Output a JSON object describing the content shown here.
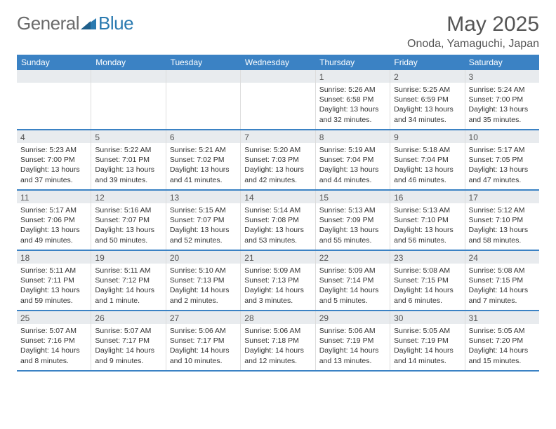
{
  "logo": {
    "part1": "General",
    "part2": "Blue"
  },
  "title": "May 2025",
  "location": "Onoda, Yamaguchi, Japan",
  "colors": {
    "header_bg": "#3b82c4",
    "header_text": "#ffffff",
    "daynum_bg": "#e8ebee",
    "text": "#333333",
    "logo_gray": "#6a6a6a",
    "logo_blue": "#2a7ab0"
  },
  "day_headers": [
    "Sunday",
    "Monday",
    "Tuesday",
    "Wednesday",
    "Thursday",
    "Friday",
    "Saturday"
  ],
  "weeks": [
    [
      {
        "n": "",
        "sr": "",
        "ss": "",
        "dl": ""
      },
      {
        "n": "",
        "sr": "",
        "ss": "",
        "dl": ""
      },
      {
        "n": "",
        "sr": "",
        "ss": "",
        "dl": ""
      },
      {
        "n": "",
        "sr": "",
        "ss": "",
        "dl": ""
      },
      {
        "n": "1",
        "sr": "Sunrise: 5:26 AM",
        "ss": "Sunset: 6:58 PM",
        "dl": "Daylight: 13 hours and 32 minutes."
      },
      {
        "n": "2",
        "sr": "Sunrise: 5:25 AM",
        "ss": "Sunset: 6:59 PM",
        "dl": "Daylight: 13 hours and 34 minutes."
      },
      {
        "n": "3",
        "sr": "Sunrise: 5:24 AM",
        "ss": "Sunset: 7:00 PM",
        "dl": "Daylight: 13 hours and 35 minutes."
      }
    ],
    [
      {
        "n": "4",
        "sr": "Sunrise: 5:23 AM",
        "ss": "Sunset: 7:00 PM",
        "dl": "Daylight: 13 hours and 37 minutes."
      },
      {
        "n": "5",
        "sr": "Sunrise: 5:22 AM",
        "ss": "Sunset: 7:01 PM",
        "dl": "Daylight: 13 hours and 39 minutes."
      },
      {
        "n": "6",
        "sr": "Sunrise: 5:21 AM",
        "ss": "Sunset: 7:02 PM",
        "dl": "Daylight: 13 hours and 41 minutes."
      },
      {
        "n": "7",
        "sr": "Sunrise: 5:20 AM",
        "ss": "Sunset: 7:03 PM",
        "dl": "Daylight: 13 hours and 42 minutes."
      },
      {
        "n": "8",
        "sr": "Sunrise: 5:19 AM",
        "ss": "Sunset: 7:04 PM",
        "dl": "Daylight: 13 hours and 44 minutes."
      },
      {
        "n": "9",
        "sr": "Sunrise: 5:18 AM",
        "ss": "Sunset: 7:04 PM",
        "dl": "Daylight: 13 hours and 46 minutes."
      },
      {
        "n": "10",
        "sr": "Sunrise: 5:17 AM",
        "ss": "Sunset: 7:05 PM",
        "dl": "Daylight: 13 hours and 47 minutes."
      }
    ],
    [
      {
        "n": "11",
        "sr": "Sunrise: 5:17 AM",
        "ss": "Sunset: 7:06 PM",
        "dl": "Daylight: 13 hours and 49 minutes."
      },
      {
        "n": "12",
        "sr": "Sunrise: 5:16 AM",
        "ss": "Sunset: 7:07 PM",
        "dl": "Daylight: 13 hours and 50 minutes."
      },
      {
        "n": "13",
        "sr": "Sunrise: 5:15 AM",
        "ss": "Sunset: 7:07 PM",
        "dl": "Daylight: 13 hours and 52 minutes."
      },
      {
        "n": "14",
        "sr": "Sunrise: 5:14 AM",
        "ss": "Sunset: 7:08 PM",
        "dl": "Daylight: 13 hours and 53 minutes."
      },
      {
        "n": "15",
        "sr": "Sunrise: 5:13 AM",
        "ss": "Sunset: 7:09 PM",
        "dl": "Daylight: 13 hours and 55 minutes."
      },
      {
        "n": "16",
        "sr": "Sunrise: 5:13 AM",
        "ss": "Sunset: 7:10 PM",
        "dl": "Daylight: 13 hours and 56 minutes."
      },
      {
        "n": "17",
        "sr": "Sunrise: 5:12 AM",
        "ss": "Sunset: 7:10 PM",
        "dl": "Daylight: 13 hours and 58 minutes."
      }
    ],
    [
      {
        "n": "18",
        "sr": "Sunrise: 5:11 AM",
        "ss": "Sunset: 7:11 PM",
        "dl": "Daylight: 13 hours and 59 minutes."
      },
      {
        "n": "19",
        "sr": "Sunrise: 5:11 AM",
        "ss": "Sunset: 7:12 PM",
        "dl": "Daylight: 14 hours and 1 minute."
      },
      {
        "n": "20",
        "sr": "Sunrise: 5:10 AM",
        "ss": "Sunset: 7:13 PM",
        "dl": "Daylight: 14 hours and 2 minutes."
      },
      {
        "n": "21",
        "sr": "Sunrise: 5:09 AM",
        "ss": "Sunset: 7:13 PM",
        "dl": "Daylight: 14 hours and 3 minutes."
      },
      {
        "n": "22",
        "sr": "Sunrise: 5:09 AM",
        "ss": "Sunset: 7:14 PM",
        "dl": "Daylight: 14 hours and 5 minutes."
      },
      {
        "n": "23",
        "sr": "Sunrise: 5:08 AM",
        "ss": "Sunset: 7:15 PM",
        "dl": "Daylight: 14 hours and 6 minutes."
      },
      {
        "n": "24",
        "sr": "Sunrise: 5:08 AM",
        "ss": "Sunset: 7:15 PM",
        "dl": "Daylight: 14 hours and 7 minutes."
      }
    ],
    [
      {
        "n": "25",
        "sr": "Sunrise: 5:07 AM",
        "ss": "Sunset: 7:16 PM",
        "dl": "Daylight: 14 hours and 8 minutes."
      },
      {
        "n": "26",
        "sr": "Sunrise: 5:07 AM",
        "ss": "Sunset: 7:17 PM",
        "dl": "Daylight: 14 hours and 9 minutes."
      },
      {
        "n": "27",
        "sr": "Sunrise: 5:06 AM",
        "ss": "Sunset: 7:17 PM",
        "dl": "Daylight: 14 hours and 10 minutes."
      },
      {
        "n": "28",
        "sr": "Sunrise: 5:06 AM",
        "ss": "Sunset: 7:18 PM",
        "dl": "Daylight: 14 hours and 12 minutes."
      },
      {
        "n": "29",
        "sr": "Sunrise: 5:06 AM",
        "ss": "Sunset: 7:19 PM",
        "dl": "Daylight: 14 hours and 13 minutes."
      },
      {
        "n": "30",
        "sr": "Sunrise: 5:05 AM",
        "ss": "Sunset: 7:19 PM",
        "dl": "Daylight: 14 hours and 14 minutes."
      },
      {
        "n": "31",
        "sr": "Sunrise: 5:05 AM",
        "ss": "Sunset: 7:20 PM",
        "dl": "Daylight: 14 hours and 15 minutes."
      }
    ]
  ]
}
